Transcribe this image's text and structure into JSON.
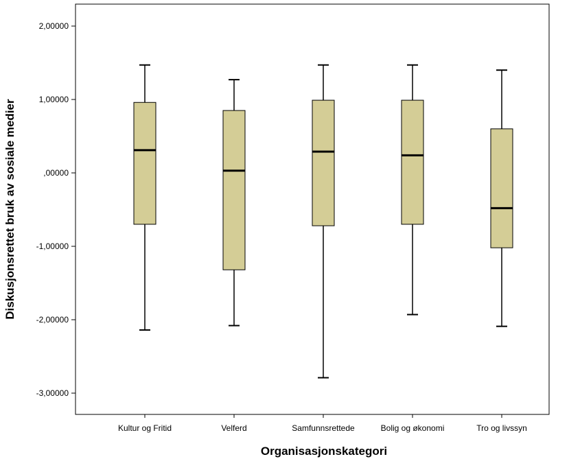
{
  "chart_data": {
    "type": "boxplot",
    "title": "",
    "xlabel": "Organisasjonskategori",
    "ylabel": "Diskusjonsrettet bruk av sosiale medier",
    "ylim": [
      -3.3,
      2.3
    ],
    "yticks": [
      2,
      1,
      0,
      -1,
      -2,
      -3
    ],
    "ytick_labels": [
      "2,00000",
      "1,00000",
      ",00000",
      "-1,00000",
      "-2,00000",
      "-3,00000"
    ],
    "grid": false,
    "legend": "none",
    "box_color": "#d4cd96",
    "categories": [
      "Kultur og Fritid",
      "Velferd",
      "Samfunnsrettede",
      "Bolig og økonomi",
      "Tro og livssyn"
    ],
    "boxes": [
      {
        "whisker_low": -2.14,
        "q1": -0.7,
        "median": 0.31,
        "q3": 0.96,
        "whisker_high": 1.47
      },
      {
        "whisker_low": -2.08,
        "q1": -1.32,
        "median": 0.03,
        "q3": 0.85,
        "whisker_high": 1.27
      },
      {
        "whisker_low": -2.79,
        "q1": -0.72,
        "median": 0.29,
        "q3": 0.99,
        "whisker_high": 1.47
      },
      {
        "whisker_low": -1.93,
        "q1": -0.7,
        "median": 0.24,
        "q3": 0.99,
        "whisker_high": 1.47
      },
      {
        "whisker_low": -2.09,
        "q1": -1.02,
        "median": -0.48,
        "q3": 0.6,
        "whisker_high": 1.4
      }
    ]
  }
}
